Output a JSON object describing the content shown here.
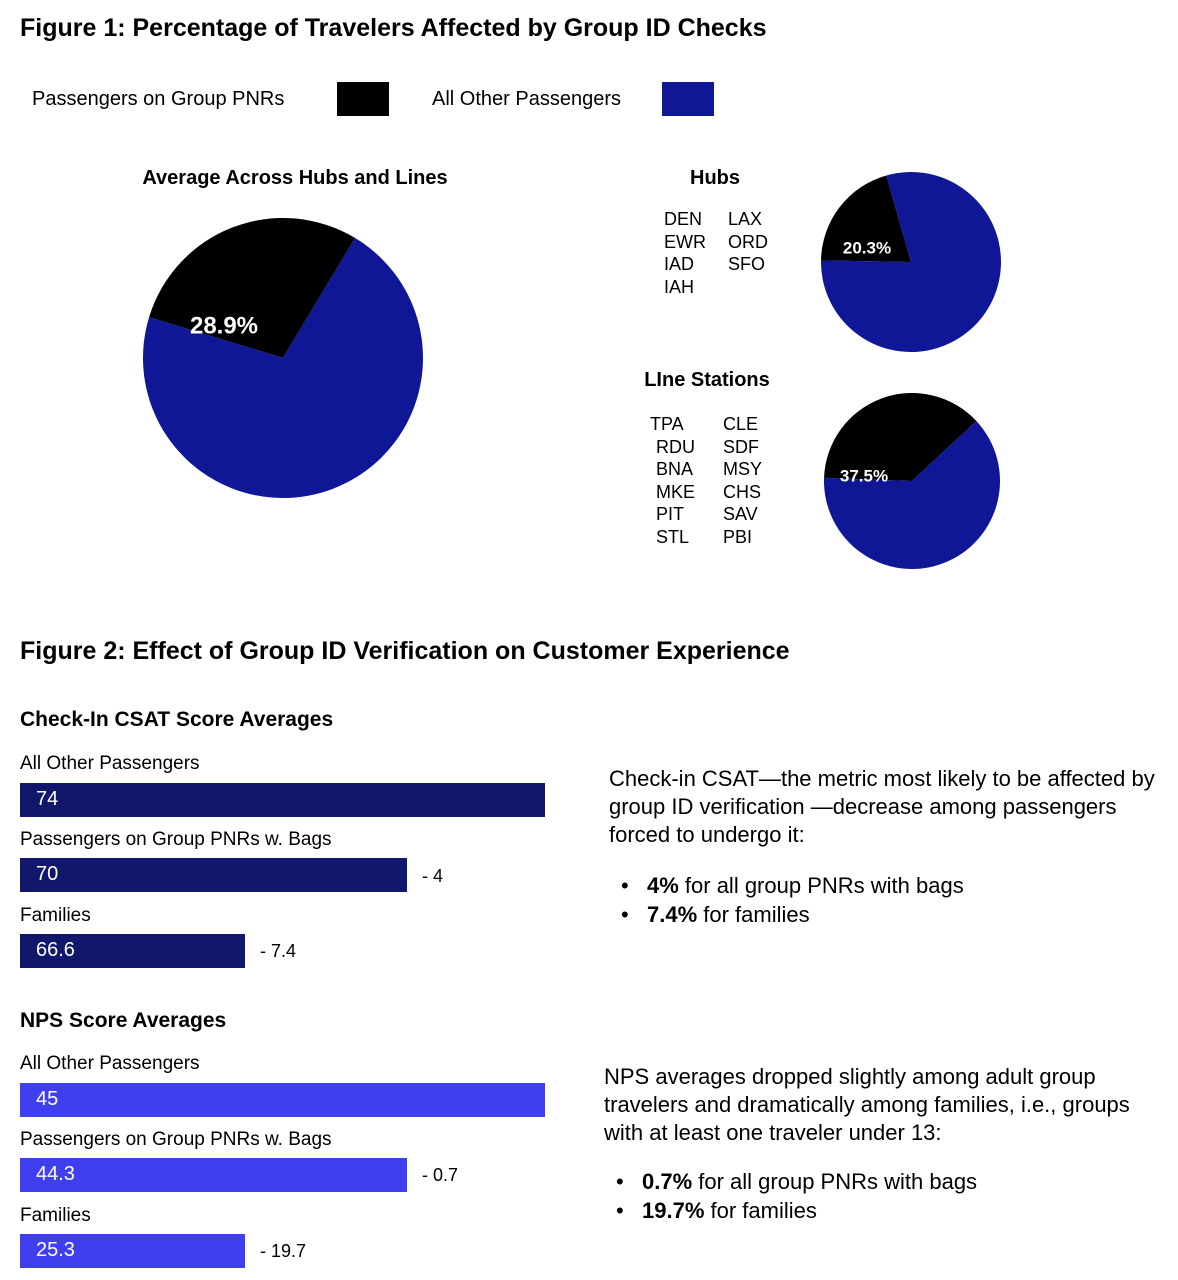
{
  "figure1": {
    "title": "Figure 1: Percentage of Travelers Affected by Group ID Checks",
    "legend": [
      {
        "label": "Passengers on Group PNRs",
        "color": "#000000"
      },
      {
        "label": "All Other Passengers",
        "color": "#0f1796"
      }
    ]
  },
  "figure2": {
    "title": "Figure 2: Effect of Group ID Verification on Customer Experience"
  },
  "chart_data": [
    {
      "type": "pie",
      "title": "Average Across Hubs and Lines",
      "labels": [
        "Passengers on Group PNRs",
        "All Other Passengers"
      ],
      "values": [
        28.9,
        71.1
      ],
      "display_label": "28.9%",
      "colors": [
        "#000000",
        "#0f1796"
      ]
    },
    {
      "type": "pie",
      "title": "Hubs",
      "codes_col1": [
        "DEN",
        "EWR",
        "IAD",
        "IAH"
      ],
      "codes_col2": [
        "LAX",
        "ORD",
        "SFO"
      ],
      "labels": [
        "Passengers on Group PNRs",
        "All Other Passengers"
      ],
      "values": [
        20.3,
        79.7
      ],
      "display_label": "20.3%",
      "colors": [
        "#000000",
        "#0f1796"
      ]
    },
    {
      "type": "pie",
      "title": "LIne Stations",
      "codes_col1": [
        "TPA",
        "RDU",
        "BNA",
        "MKE",
        "PIT",
        "STL"
      ],
      "codes_col2": [
        "CLE",
        "SDF",
        "MSY",
        "CHS",
        "SAV",
        "PBI"
      ],
      "labels": [
        "Passengers on Group PNRs",
        "All Other Passengers"
      ],
      "values": [
        37.5,
        62.5
      ],
      "display_label": "37.5%",
      "colors": [
        "#000000",
        "#0f1796"
      ]
    },
    {
      "type": "bar",
      "orientation": "horizontal",
      "title": "Check-In CSAT Score Averages",
      "categories": [
        "All Other Passengers",
        "Passengers on Group PNRs w. Bags",
        "Families"
      ],
      "values": [
        74,
        70,
        66.6
      ],
      "value_labels": [
        "74",
        "70",
        "66.6"
      ],
      "deltas": [
        "",
        "- 4",
        "- 7.4"
      ],
      "color": "#11176a"
    },
    {
      "type": "bar",
      "orientation": "horizontal",
      "title": "NPS Score Averages",
      "categories": [
        "All Other Passengers",
        "Passengers on Group PNRs w. Bags",
        "Families"
      ],
      "values": [
        45,
        44.3,
        25.3
      ],
      "value_labels": [
        "45",
        "44.3",
        "25.3"
      ],
      "deltas": [
        "",
        "- 0.7",
        "- 19.7"
      ],
      "color": "#3f3ff0"
    }
  ],
  "csat_note": {
    "paragraph": "Check-in CSAT—the metric most likely to be affected by group ID verification —decrease among passengers forced to undergo it:",
    "bullets": [
      {
        "bold": "4%",
        "rest": " for all group PNRs with bags"
      },
      {
        "bold": "7.4%",
        "rest": " for families"
      }
    ]
  },
  "nps_note": {
    "paragraph": "NPS averages dropped slightly among adult group travelers and dramatically among families, i.e., groups with at least one traveler under 13:",
    "bullets": [
      {
        "bold": "0.7%",
        "rest": " for all group PNRs with bags"
      },
      {
        "bold": "19.7%",
        "rest": " for families"
      }
    ]
  },
  "bullet_glyph": "•"
}
